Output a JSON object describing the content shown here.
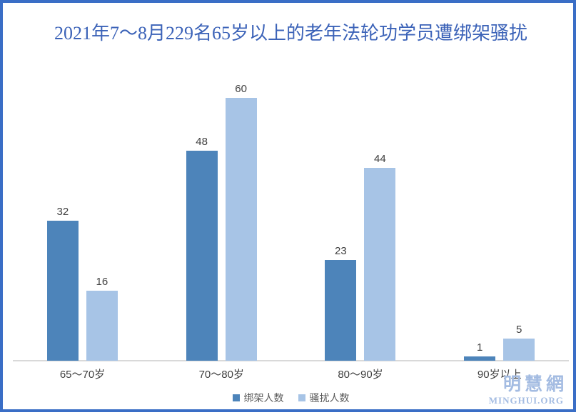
{
  "title": "2021年7～8月229名65岁以上的老年法轮功学员遭绑架骚扰",
  "colors": {
    "frame_border": "#3A6EC6",
    "title_text": "#3C63B8",
    "axis_line": "#D9D9D9",
    "value_label": "#404040",
    "category_label": "#404040",
    "legend_text": "#595959",
    "watermark": "#A4BCE2",
    "series_kidnapped": "#4D84BA",
    "series_harassed": "#A7C4E6",
    "background": "#FFFFFF"
  },
  "chart_data": {
    "type": "bar",
    "grouped": true,
    "title": "2021年7～8月229名65岁以上的老年法轮功学员遭绑架骚扰",
    "categories": [
      "65～70岁",
      "70～80岁",
      "80～90岁",
      "90岁以上"
    ],
    "series": [
      {
        "key": "kidnapped",
        "name": "绑架人数",
        "color": "#4D84BA",
        "values": [
          32,
          48,
          23,
          1
        ]
      },
      {
        "key": "harassed",
        "name": "骚扰人数",
        "color": "#A7C4E6",
        "values": [
          16,
          60,
          44,
          5
        ]
      }
    ],
    "xlabel": "",
    "ylabel": "",
    "ylim": [
      0,
      65
    ],
    "grid": false,
    "y_axis_visible": false,
    "data_labels": true,
    "legend_position": "bottom",
    "total_mentioned_in_title": 229
  },
  "watermark": {
    "cjk": "明慧網",
    "latin": "MINGHUI.ORG"
  }
}
